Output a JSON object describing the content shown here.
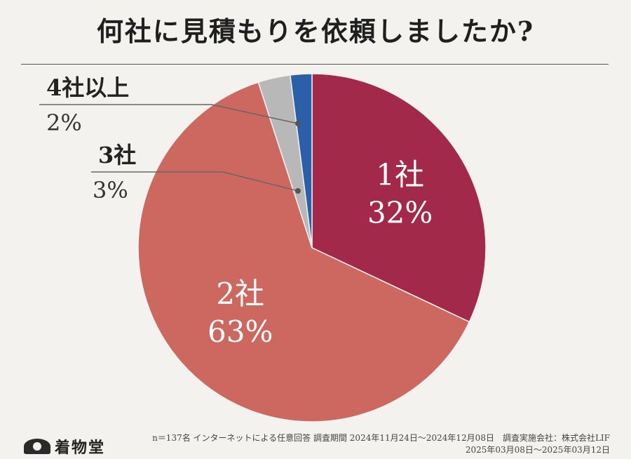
{
  "title": "何社に見積もりを依頼しましたか?",
  "chart_data": {
    "type": "pie",
    "start_angle_deg": 0,
    "direction": "clockwise",
    "slices": [
      {
        "label": "1社",
        "percent_label": "32%",
        "value": 32,
        "color": "#a3294a",
        "label_position": "inside"
      },
      {
        "label": "2社",
        "percent_label": "63%",
        "value": 63,
        "color": "#cd6860",
        "label_position": "inside"
      },
      {
        "label": "3社",
        "percent_label": "3%",
        "value": 3,
        "color": "#b8b8b8",
        "label_position": "outside-left"
      },
      {
        "label": "4社以上",
        "percent_label": "2%",
        "value": 2,
        "color": "#2b5fa8",
        "label_position": "outside-left"
      }
    ]
  },
  "footer": {
    "logo_text": "着物堂",
    "note_line1": "n＝137名 インターネットによる任意回答 調査期間 2024年11月24日～2024年12月08日　調査実施会社：株式会社LIF",
    "note_line2": "2025年03月08日～2025年03月12日"
  }
}
